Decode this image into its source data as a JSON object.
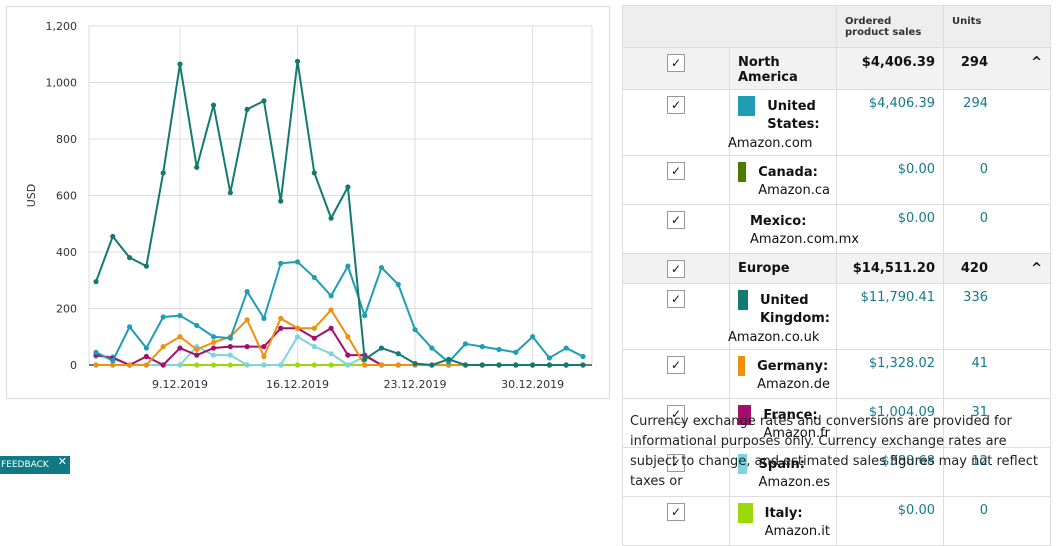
{
  "chart_data": {
    "type": "line",
    "ylabel": "USD",
    "ylim": [
      0,
      1200
    ],
    "y_ticks": [
      "0",
      "200",
      "400",
      "600",
      "800",
      "1,000",
      "1,200"
    ],
    "x_ticks": [
      {
        "index": 5,
        "label": "9.12.2019"
      },
      {
        "index": 12,
        "label": "16.12.2019"
      },
      {
        "index": 19,
        "label": "23.12.2019"
      },
      {
        "index": 26,
        "label": "30.12.2019"
      }
    ],
    "n_points": 30,
    "series": [
      {
        "name": "United Kingdom",
        "color": "#137a6f",
        "values": [
          295,
          455,
          380,
          350,
          680,
          1065,
          700,
          920,
          610,
          905,
          935,
          580,
          1075,
          680,
          520,
          630,
          20,
          60,
          40,
          5,
          0,
          20,
          0,
          0,
          0,
          0,
          0,
          0,
          0,
          0
        ]
      },
      {
        "name": "United States",
        "color": "#1f9db5",
        "values": [
          45,
          15,
          135,
          60,
          170,
          175,
          140,
          100,
          95,
          260,
          165,
          360,
          365,
          310,
          245,
          350,
          175,
          345,
          285,
          125,
          60,
          10,
          75,
          65,
          55,
          45,
          100,
          25,
          60,
          30
        ]
      },
      {
        "name": "Germany",
        "color": "#f0900f",
        "values": [
          0,
          0,
          0,
          0,
          65,
          100,
          55,
          80,
          100,
          160,
          30,
          165,
          130,
          130,
          195,
          100,
          0,
          0,
          0,
          0,
          0,
          0,
          0,
          0,
          0,
          0,
          0,
          0,
          0,
          0
        ]
      },
      {
        "name": "France",
        "color": "#a30f6e",
        "values": [
          35,
          25,
          0,
          30,
          0,
          60,
          35,
          60,
          65,
          65,
          65,
          130,
          130,
          95,
          130,
          35,
          35,
          0,
          0,
          0,
          0,
          0,
          0,
          0,
          0,
          0,
          0,
          0,
          0,
          0
        ]
      },
      {
        "name": "Spain",
        "color": "#7dd4dd",
        "values": [
          30,
          30,
          0,
          0,
          0,
          0,
          65,
          35,
          35,
          0,
          0,
          0,
          100,
          65,
          40,
          0,
          30,
          0,
          0,
          0,
          0,
          0,
          0,
          0,
          0,
          0,
          0,
          0,
          0,
          0
        ]
      },
      {
        "name": "Italy",
        "color": "#9bd90a",
        "values": [
          0,
          0,
          0,
          0,
          0,
          0,
          0,
          0,
          0,
          0,
          0,
          0,
          0,
          0,
          0,
          0,
          0,
          0,
          0,
          0,
          0,
          0,
          0,
          0,
          0,
          0,
          0,
          0,
          0,
          0
        ]
      }
    ]
  },
  "table": {
    "header_sales": "Ordered product sales",
    "header_units": "Units",
    "regions": [
      {
        "name": "North America",
        "sales": "$4,406.39",
        "units": "294",
        "caret": "^",
        "markets": [
          {
            "country": "United States:",
            "site": "Amazon.com",
            "color": "#1f9db5",
            "sales": "$4,406.39",
            "units": "294",
            "wrap": true
          },
          {
            "country": "Canada:",
            "site": "Amazon.ca",
            "color": "#4a7a00",
            "sales": "$0.00",
            "units": "0",
            "wrap": false
          },
          {
            "country": "Mexico:",
            "site": "Amazon.com.mx",
            "color": "#f26a2e",
            "sales": "$0.00",
            "units": "0",
            "wrap": false
          }
        ]
      },
      {
        "name": "Europe",
        "sales": "$14,511.20",
        "units": "420",
        "caret": "^",
        "markets": [
          {
            "country": "United Kingdom:",
            "site": "Amazon.co.uk",
            "color": "#137a6f",
            "sales": "$11,790.41",
            "units": "336",
            "wrap": true
          },
          {
            "country": "Germany:",
            "site": "Amazon.de",
            "color": "#f0900f",
            "sales": "$1,328.02",
            "units": "41",
            "wrap": false
          },
          {
            "country": "France:",
            "site": "Amazon.fr",
            "color": "#a30f6e",
            "sales": "$1,004.09",
            "units": "31",
            "wrap": false
          },
          {
            "country": "Spain:",
            "site": "Amazon.es",
            "color": "#7dd4dd",
            "sales": "$388.68",
            "units": "12",
            "wrap": false
          },
          {
            "country": "Italy:",
            "site": "Amazon.it",
            "color": "#9bd90a",
            "sales": "$0.00",
            "units": "0",
            "wrap": false
          }
        ]
      }
    ]
  },
  "disclaimer": "Currency exchange rates and conversions are provided for informational purposes only. Currency exchange rates are subject to change, and estimated sales figures may not reflect taxes or",
  "feedback": {
    "label": "FEEDBACK",
    "close": "✕"
  },
  "checkmark": "✓"
}
